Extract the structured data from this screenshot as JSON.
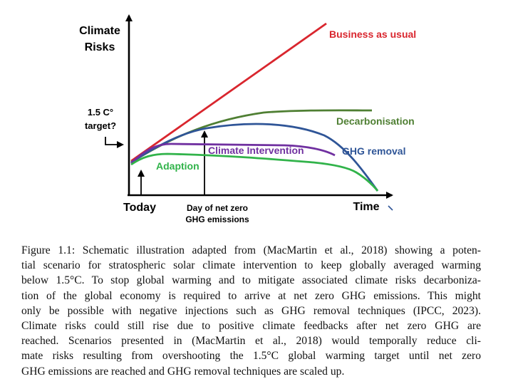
{
  "diagram": {
    "y_axis_label_line1": "Climate",
    "y_axis_label_line2": "Risks",
    "target_line1": "1.5 C°",
    "target_line2": "target?",
    "x_origin_label": "Today",
    "net_zero_line1": "Day of net zero",
    "net_zero_line2": "GHG emissions",
    "x_axis_label": "Time",
    "curves": {
      "business_as_usual": "Business as usual",
      "decarbonisation": "Decarbonisation",
      "climate_intervention": "Climate Intervention",
      "ghg_removal": "GHG removal",
      "adaption": "Adaption"
    },
    "colors": {
      "business_as_usual": "#d9262e",
      "decarbonisation": "#4f7f33",
      "climate_intervention": "#7030a0",
      "ghg_removal": "#2f5597",
      "adaption": "#31b34a",
      "axis": "#000000"
    }
  },
  "caption": {
    "lines": [
      "Figure 1.1: Schematic illustration adapted from (MacMartin et al., 2018) showing a poten-",
      "tial scenario for stratospheric solar climate intervention to keep globally averaged warming",
      "below 1.5°C. To stop global warming and to mitigate associated climate risks decarboniza-",
      "tion of the global economy is required to arrive at net zero GHG emissions. This might",
      "only be possible with negative injections such as GHG removal techniques (IPCC, 2023).",
      "Climate risks could still rise due to positive climate feedbacks after net zero GHG are",
      "reached. Scenarios presented in (MacMartin et al., 2018) would temporally reduce cli-",
      "mate risks resulting from overshooting the 1.5°C global warming target until net zero",
      "GHG emissions are reached and GHG removal techniques are scaled up."
    ]
  }
}
